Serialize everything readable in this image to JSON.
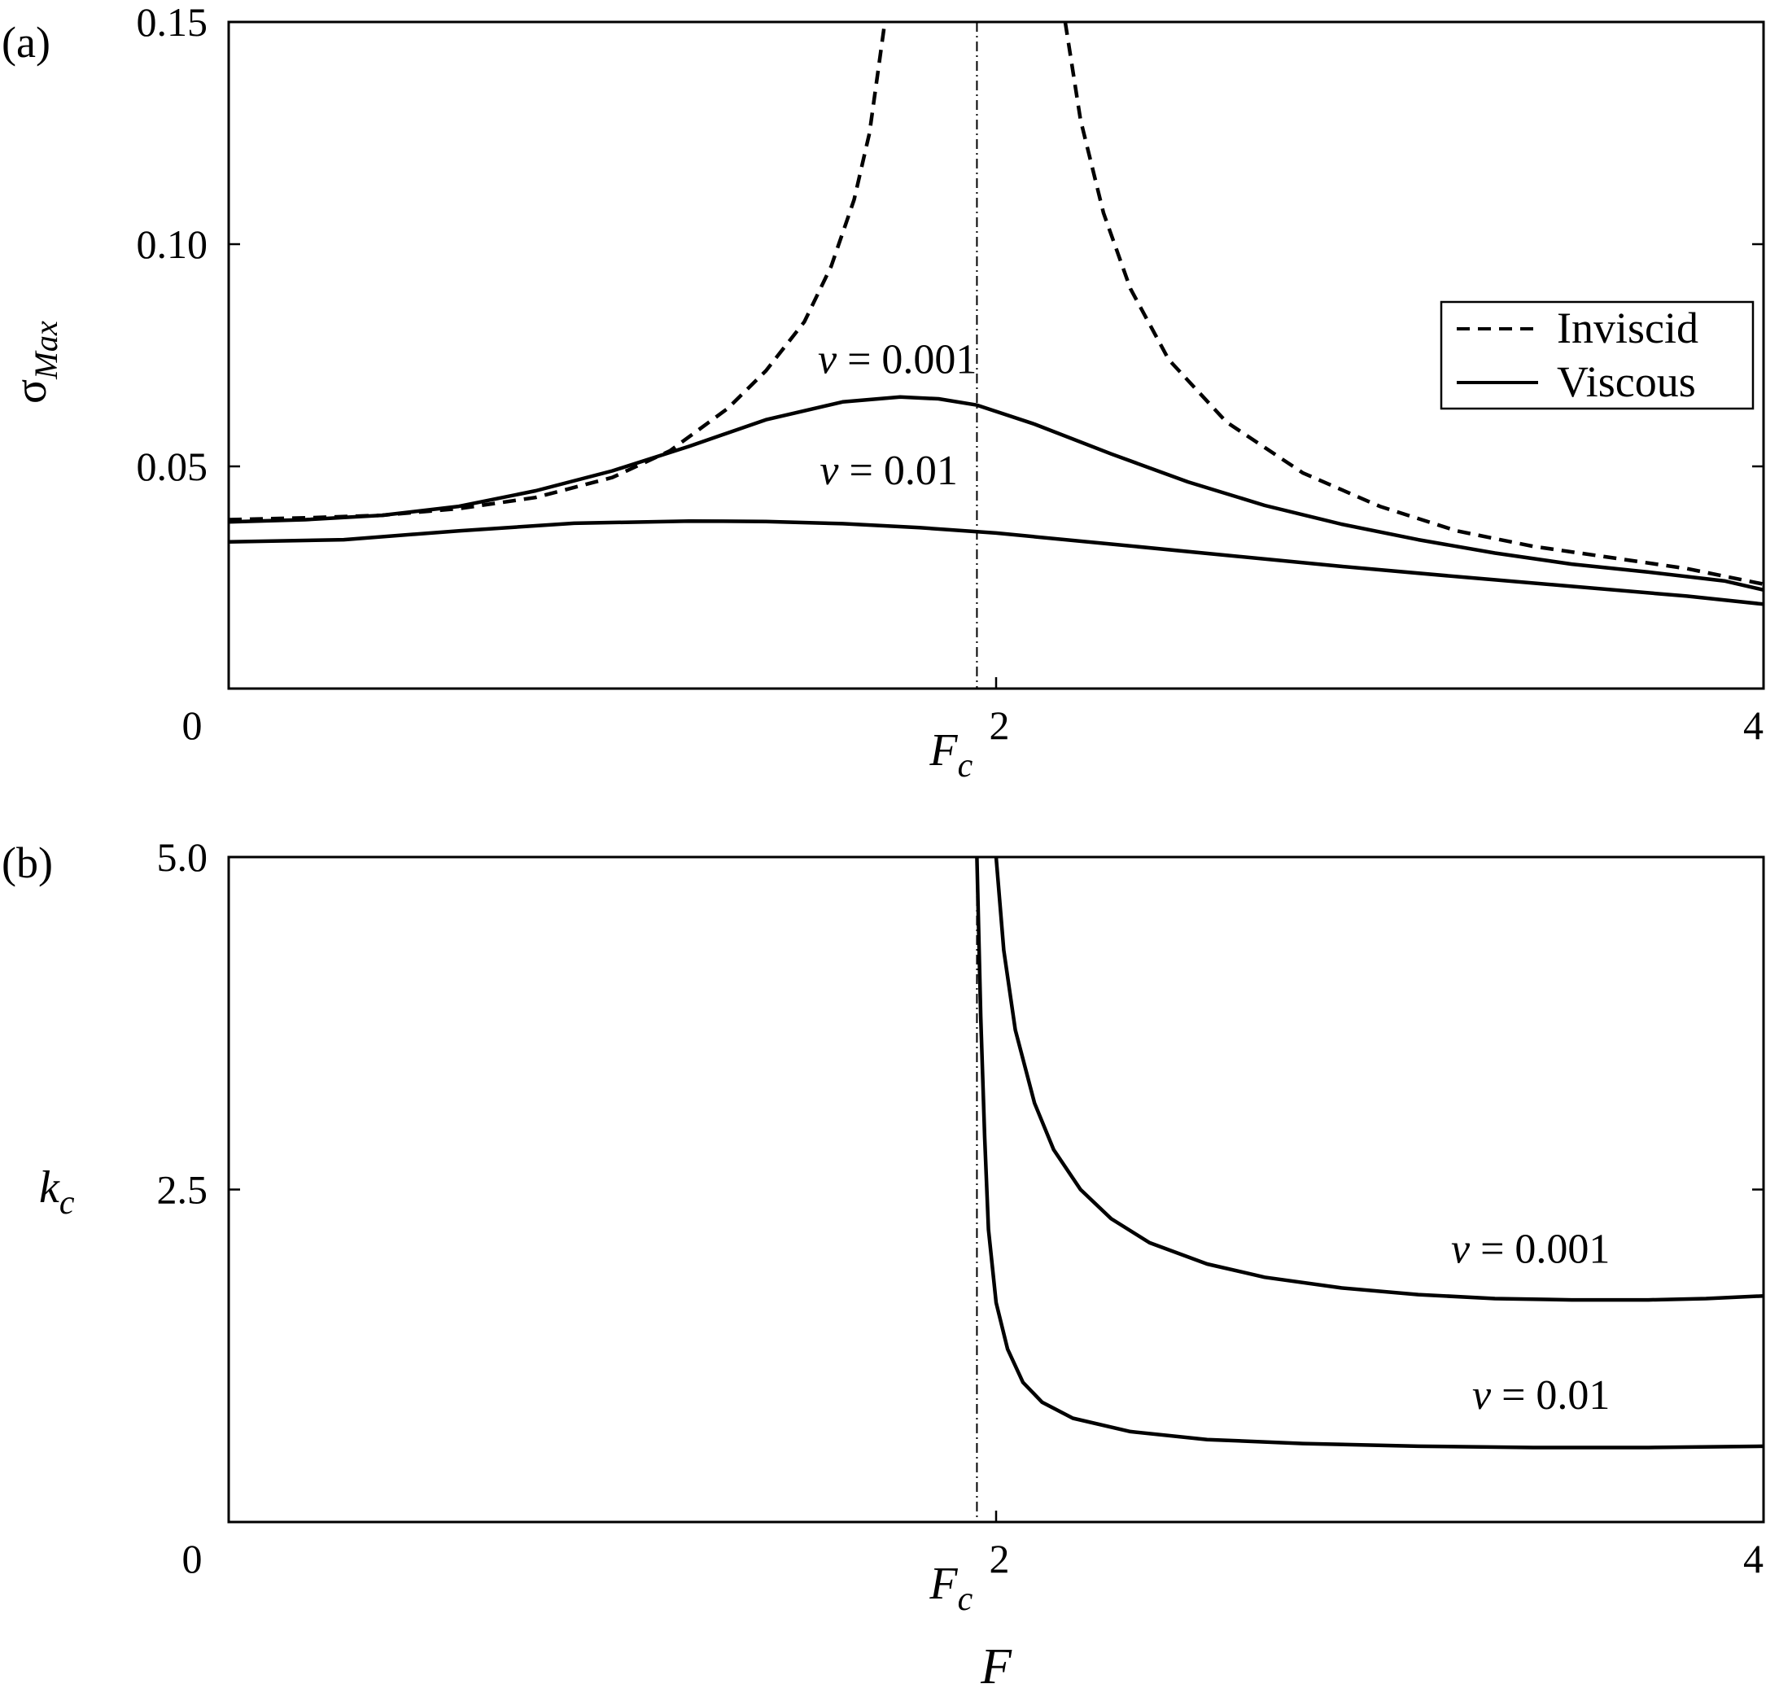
{
  "chart_data": [
    {
      "type": "line",
      "panel_label": "(a)",
      "ylabel": "σ",
      "ylabel_sub": "Max",
      "xlim": [
        0,
        4
      ],
      "ylim": [
        0,
        0.15
      ],
      "y_ticks": [
        {
          "value": 0.05,
          "label": "0.05"
        },
        {
          "value": 0.1,
          "label": "0.10"
        },
        {
          "value": 0.15,
          "label": "0.15"
        }
      ],
      "x_ticks": [
        {
          "value": 0,
          "label": "0"
        },
        {
          "value": 2,
          "label": "2"
        },
        {
          "value": 4,
          "label": "4"
        }
      ],
      "fc_value": 1.95,
      "fc_label": "F",
      "fc_sub": "c",
      "grid": false,
      "legend": {
        "position": "right",
        "entries": [
          {
            "label": "Inviscid",
            "style": "dashed"
          },
          {
            "label": "Viscous",
            "style": "solid"
          }
        ]
      },
      "series": [
        {
          "name": "Inviscid",
          "style": "dashed",
          "color": "#000000",
          "segments": [
            [
              [
                0,
                0.038
              ],
              [
                0.2,
                0.0384
              ],
              [
                0.4,
                0.039
              ],
              [
                0.6,
                0.0405
              ],
              [
                0.8,
                0.043
              ],
              [
                1.0,
                0.0475
              ],
              [
                1.15,
                0.0535
              ],
              [
                1.3,
                0.063
              ],
              [
                1.4,
                0.0715
              ],
              [
                1.5,
                0.0825
              ],
              [
                1.57,
                0.095
              ],
              [
                1.63,
                0.11
              ],
              [
                1.67,
                0.125
              ],
              [
                1.71,
                0.15
              ]
            ],
            [
              [
                2.18,
                0.15
              ],
              [
                2.22,
                0.128
              ],
              [
                2.28,
                0.107
              ],
              [
                2.35,
                0.09
              ],
              [
                2.45,
                0.074
              ],
              [
                2.6,
                0.06
              ],
              [
                2.8,
                0.0485
              ],
              [
                3.0,
                0.041
              ],
              [
                3.2,
                0.0355
              ],
              [
                3.4,
                0.032
              ],
              [
                3.6,
                0.0295
              ],
              [
                3.8,
                0.027
              ],
              [
                4.0,
                0.0235
              ]
            ]
          ]
        },
        {
          "name": "ν = 0.001",
          "style": "solid",
          "color": "#000000",
          "segments": [
            [
              [
                0,
                0.0375
              ],
              [
                0.2,
                0.038
              ],
              [
                0.4,
                0.039
              ],
              [
                0.6,
                0.041
              ],
              [
                0.8,
                0.0445
              ],
              [
                1.0,
                0.049
              ],
              [
                1.2,
                0.0545
              ],
              [
                1.4,
                0.0605
              ],
              [
                1.6,
                0.0645
              ],
              [
                1.75,
                0.0656
              ],
              [
                1.85,
                0.0652
              ],
              [
                1.95,
                0.0638
              ],
              [
                2.1,
                0.0595
              ],
              [
                2.3,
                0.0528
              ],
              [
                2.5,
                0.0465
              ],
              [
                2.7,
                0.0412
              ],
              [
                2.9,
                0.037
              ],
              [
                3.1,
                0.0335
              ],
              [
                3.3,
                0.0305
              ],
              [
                3.5,
                0.028
              ],
              [
                3.7,
                0.0262
              ],
              [
                3.9,
                0.0242
              ],
              [
                4.0,
                0.0222
              ]
            ]
          ]
        },
        {
          "name": "ν = 0.01",
          "style": "solid",
          "color": "#000000",
          "segments": [
            [
              [
                0,
                0.033
              ],
              [
                0.3,
                0.0335
              ],
              [
                0.6,
                0.0355
              ],
              [
                0.9,
                0.0372
              ],
              [
                1.2,
                0.0377
              ],
              [
                1.4,
                0.0376
              ],
              [
                1.6,
                0.0371
              ],
              [
                1.8,
                0.0362
              ],
              [
                2.0,
                0.035
              ],
              [
                2.3,
                0.0325
              ],
              [
                2.6,
                0.03
              ],
              [
                2.9,
                0.0275
              ],
              [
                3.2,
                0.0252
              ],
              [
                3.5,
                0.023
              ],
              [
                3.8,
                0.0208
              ],
              [
                4.0,
                0.019
              ]
            ]
          ]
        }
      ],
      "annotations": [
        {
          "text": "ν = 0.001",
          "x": 1.95,
          "y": 0.071
        },
        {
          "text": "ν = 0.01",
          "x": 1.9,
          "y": 0.046
        }
      ]
    },
    {
      "type": "line",
      "panel_label": "(b)",
      "ylabel": "k",
      "ylabel_sub": "c",
      "xlabel": "F",
      "xlim": [
        0,
        4
      ],
      "ylim": [
        0,
        5.0
      ],
      "y_ticks": [
        {
          "value": 2.5,
          "label": "2.5"
        },
        {
          "value": 5.0,
          "label": "5.0"
        }
      ],
      "x_ticks": [
        {
          "value": 0,
          "label": "0"
        },
        {
          "value": 2,
          "label": "2"
        },
        {
          "value": 4,
          "label": "4"
        }
      ],
      "fc_value": 1.95,
      "fc_label": "F",
      "fc_sub": "c",
      "grid": false,
      "series": [
        {
          "name": "ν = 0.001",
          "style": "solid",
          "color": "#000000",
          "segments": [
            [
              [
                2.0,
                5.0
              ],
              [
                2.02,
                4.3
              ],
              [
                2.05,
                3.7
              ],
              [
                2.1,
                3.15
              ],
              [
                2.15,
                2.8
              ],
              [
                2.22,
                2.5
              ],
              [
                2.3,
                2.28
              ],
              [
                2.4,
                2.1
              ],
              [
                2.55,
                1.94
              ],
              [
                2.7,
                1.84
              ],
              [
                2.9,
                1.76
              ],
              [
                3.1,
                1.71
              ],
              [
                3.3,
                1.68
              ],
              [
                3.5,
                1.67
              ],
              [
                3.7,
                1.67
              ],
              [
                3.85,
                1.68
              ],
              [
                4.0,
                1.7
              ]
            ]
          ]
        },
        {
          "name": "ν = 0.01",
          "style": "solid",
          "color": "#000000",
          "segments": [
            [
              [
                1.95,
                5.0
              ],
              [
                1.96,
                3.8
              ],
              [
                1.97,
                2.9
              ],
              [
                1.98,
                2.2
              ],
              [
                2.0,
                1.65
              ],
              [
                2.03,
                1.3
              ],
              [
                2.07,
                1.05
              ],
              [
                2.12,
                0.9
              ],
              [
                2.2,
                0.78
              ],
              [
                2.35,
                0.68
              ],
              [
                2.55,
                0.62
              ],
              [
                2.8,
                0.59
              ],
              [
                3.1,
                0.57
              ],
              [
                3.4,
                0.56
              ],
              [
                3.7,
                0.56
              ],
              [
                4.0,
                0.57
              ]
            ]
          ]
        }
      ],
      "annotations": [
        {
          "text": "ν = 0.001",
          "x": 3.6,
          "y": 1.95
        },
        {
          "text": "ν = 0.01",
          "x": 3.6,
          "y": 0.85
        }
      ]
    }
  ]
}
